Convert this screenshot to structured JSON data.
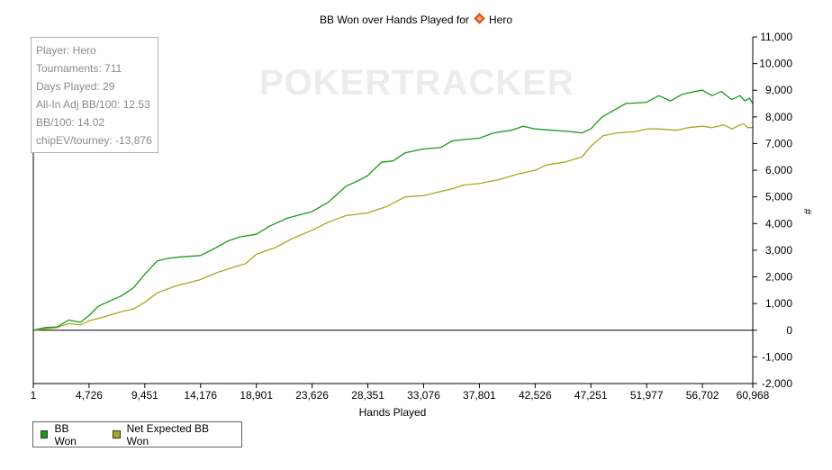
{
  "chart_data": {
    "type": "line",
    "title_prefix": "BB Won over Hands Played for",
    "title_player": "Hero",
    "watermark": "POKERTRACKER",
    "xlabel": "Hands Played",
    "ylabel": "#",
    "x_ticks": [
      1,
      4726,
      9451,
      14176,
      18901,
      23626,
      28351,
      33076,
      37801,
      42526,
      47251,
      51977,
      56702,
      60968
    ],
    "x_tick_labels": [
      "1",
      "4,726",
      "9,451",
      "14,176",
      "18,901",
      "23,626",
      "28,351",
      "33,076",
      "37,801",
      "42,526",
      "47,251",
      "51,977",
      "56,702",
      "60,968"
    ],
    "xlim": [
      1,
      60968
    ],
    "y_ticks": [
      -2000,
      -1000,
      0,
      1000,
      2000,
      3000,
      4000,
      5000,
      6000,
      7000,
      8000,
      9000,
      10000,
      11000
    ],
    "y_tick_labels": [
      "-2,000",
      "-1,000",
      "0",
      "1,000",
      "2,000",
      "3,000",
      "4,000",
      "5,000",
      "6,000",
      "7,000",
      "8,000",
      "9,000",
      "10,000",
      "11,000"
    ],
    "ylim": [
      -2000,
      11000
    ],
    "series": [
      {
        "name": "BB Won",
        "color": "#1a9a1a",
        "x": [
          1,
          1000,
          2000,
          3000,
          4000,
          4726,
          5500,
          6500,
          7500,
          8500,
          9451,
          10500,
          11500,
          12500,
          14176,
          15500,
          16500,
          17500,
          18901,
          20000,
          21500,
          23626,
          25000,
          26500,
          27500,
          28351,
          29500,
          30500,
          31500,
          33076,
          34500,
          35500,
          36500,
          37801,
          39000,
          40500,
          41500,
          42526,
          44000,
          45500,
          46500,
          47251,
          48200,
          49200,
          50200,
          51977,
          53000,
          54000,
          55000,
          56000,
          56702,
          57500,
          58300,
          59200,
          59900,
          60300,
          60700,
          60968
        ],
        "values": [
          0,
          100,
          120,
          380,
          300,
          550,
          900,
          1100,
          1300,
          1600,
          2100,
          2600,
          2700,
          2750,
          2800,
          3100,
          3350,
          3500,
          3600,
          3900,
          4200,
          4450,
          4800,
          5400,
          5600,
          5800,
          6300,
          6350,
          6650,
          6800,
          6850,
          7100,
          7150,
          7200,
          7400,
          7500,
          7650,
          7550,
          7500,
          7450,
          7400,
          7550,
          8000,
          8250,
          8500,
          8550,
          8800,
          8600,
          8850,
          8950,
          9000,
          8800,
          8950,
          8650,
          8800,
          8600,
          8700,
          8500
        ]
      },
      {
        "name": "Net Expected BB Won",
        "color": "#a8a81c",
        "x": [
          1,
          1000,
          2000,
          3000,
          4000,
          4726,
          6000,
          7500,
          8500,
          9451,
          10500,
          12000,
          14176,
          15500,
          16500,
          18000,
          18901,
          20500,
          22000,
          23626,
          25000,
          26500,
          28351,
          29000,
          30000,
          31500,
          33076,
          34500,
          35500,
          36500,
          37801,
          39500,
          41000,
          42526,
          43500,
          45000,
          46500,
          47251,
          48300,
          49500,
          51000,
          51977,
          53000,
          54500,
          55500,
          56702,
          57500,
          58500,
          59200,
          59900,
          60200,
          60500,
          60968
        ],
        "values": [
          0,
          50,
          100,
          250,
          200,
          350,
          500,
          700,
          800,
          1050,
          1400,
          1650,
          1900,
          2150,
          2300,
          2500,
          2850,
          3100,
          3450,
          3750,
          4050,
          4300,
          4400,
          4500,
          4650,
          5000,
          5050,
          5200,
          5300,
          5450,
          5500,
          5650,
          5850,
          6000,
          6200,
          6300,
          6500,
          6900,
          7300,
          7400,
          7450,
          7550,
          7550,
          7500,
          7600,
          7650,
          7600,
          7700,
          7550,
          7700,
          7750,
          7600,
          7600
        ]
      }
    ]
  },
  "info": {
    "player": "Player: Hero",
    "tournaments": "Tournaments: 711",
    "days_played": "Days Played: 29",
    "allin_adj": "All-In Adj BB/100: 12.53",
    "bb100": "BB/100: 14.02",
    "chipev": "chipEV/tourney: -13,876"
  },
  "legend": {
    "items": [
      {
        "label": "BB Won",
        "color": "#1a9a1a"
      },
      {
        "label": "Net Expected BB Won",
        "color": "#a8a81c"
      }
    ]
  },
  "colors": {
    "title_icon": "#e8561e",
    "zero_line": "#000000",
    "axis": "#000000",
    "watermark": "#ececec"
  }
}
